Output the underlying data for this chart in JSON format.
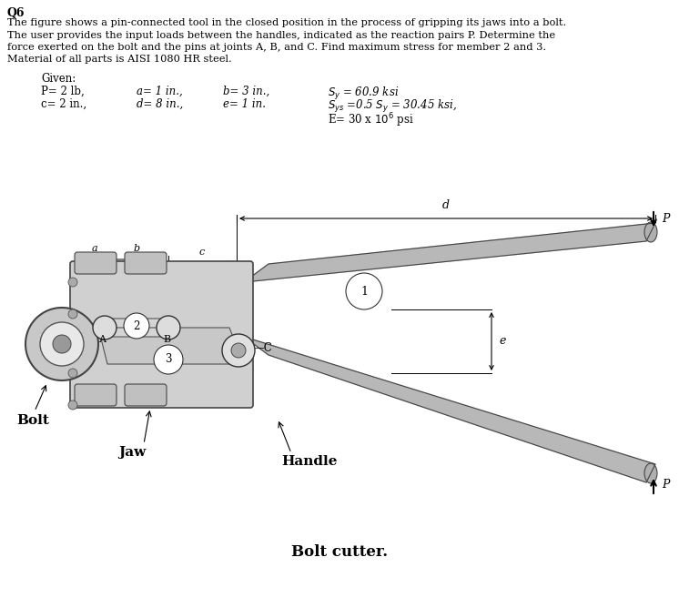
{
  "title_q": "Q6",
  "desc_lines": [
    "The figure shows a pin-connected tool in the closed position in the process of gripping its jaws into a bolt.",
    "The user provides the input loads between the handles, indicated as the reaction pairs P. Determine the",
    "force exerted on the bolt and the pins at joints A, B, and C. Find maximum stress for member 2 and 3.",
    "Material of all parts is AISI 1080 HR steel."
  ],
  "given_label": "Given:",
  "col1": [
    "P= 2 lb,",
    "c= 2 in.,"
  ],
  "col2": [
    "a= 1 in.,",
    "d= 8 in.,"
  ],
  "col3": [
    "b= 3 in.,",
    "e= 1 in."
  ],
  "col4": [
    "$S_y$ = 60.9 ksi",
    "$S_{ys}$ =0.5 $S_y$ = 30.45 ksi,",
    "E= 30 x $10^6$ psi"
  ],
  "caption": "Bolt cutter.",
  "bg": "#ffffff",
  "fg": "#000000"
}
